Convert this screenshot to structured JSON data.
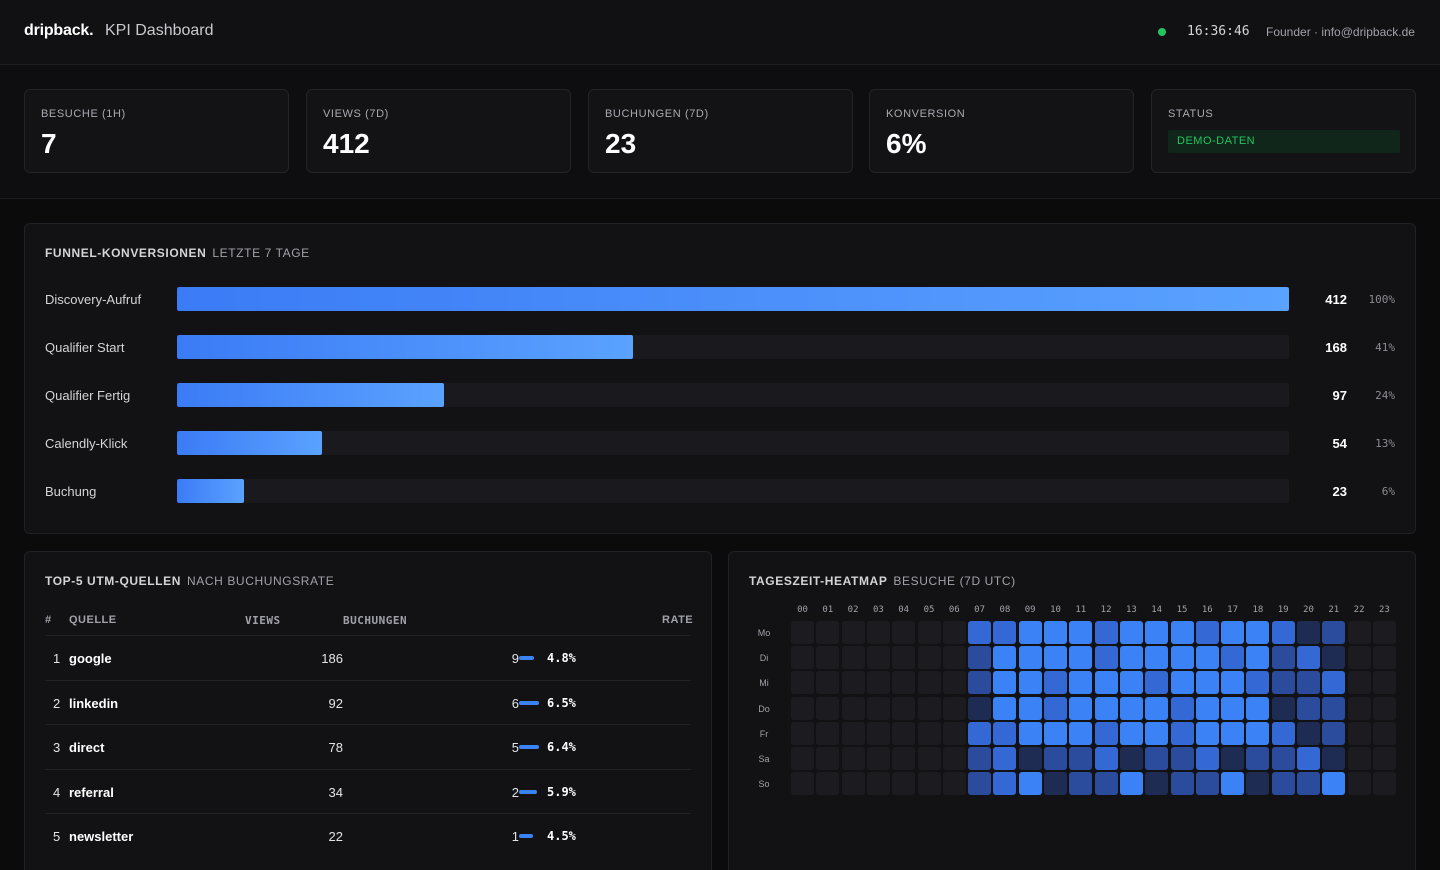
{
  "header": {
    "brand": "dripback.",
    "title": "KPI Dashboard",
    "clock": "16:36:46",
    "user": "Founder · info@dripback.de"
  },
  "kpis": [
    {
      "label": "BESUCHE (1H)",
      "value": "7"
    },
    {
      "label": "VIEWS (7D)",
      "value": "412"
    },
    {
      "label": "BUCHUNGEN (7D)",
      "value": "23"
    },
    {
      "label": "KONVERSION",
      "value": "6%"
    }
  ],
  "status": {
    "label": "STATUS",
    "badge": "DEMO-DATEN"
  },
  "funnel": {
    "title": "FUNNEL-KONVERSIONEN",
    "subtitle": "LETZTE 7 TAGE",
    "steps": [
      {
        "label": "Discovery-Aufruf",
        "count": "412",
        "pct": "100%",
        "fraction": 1.0
      },
      {
        "label": "Qualifier Start",
        "count": "168",
        "pct": "41%",
        "fraction": 0.41
      },
      {
        "label": "Qualifier Fertig",
        "count": "97",
        "pct": "24%",
        "fraction": 0.24
      },
      {
        "label": "Calendly-Klick",
        "count": "54",
        "pct": "13%",
        "fraction": 0.13
      },
      {
        "label": "Buchung",
        "count": "23",
        "pct": "6%",
        "fraction": 0.06
      }
    ]
  },
  "utm": {
    "title": "TOP-5 UTM-QUELLEN",
    "subtitle": "NACH BUCHUNGSRATE",
    "columns": {
      "num": "#",
      "source": "QUELLE",
      "views": "VIEWS",
      "bookings": "BUCHUNGEN",
      "rate": "RATE"
    },
    "rows": [
      {
        "num": "1",
        "source": "google",
        "views": "186",
        "bookings": "9",
        "rate": "4.8%",
        "rate_value": 4.8
      },
      {
        "num": "2",
        "source": "linkedin",
        "views": "92",
        "bookings": "6",
        "rate": "6.5%",
        "rate_value": 6.5
      },
      {
        "num": "3",
        "source": "direct",
        "views": "78",
        "bookings": "5",
        "rate": "6.4%",
        "rate_value": 6.4
      },
      {
        "num": "4",
        "source": "referral",
        "views": "34",
        "bookings": "2",
        "rate": "5.9%",
        "rate_value": 5.9
      },
      {
        "num": "5",
        "source": "newsletter",
        "views": "22",
        "bookings": "1",
        "rate": "4.5%",
        "rate_value": 4.5
      }
    ]
  },
  "heatmap": {
    "title": "TAGESZEIT-HEATMAP",
    "subtitle": "BESUCHE (7D UTC)",
    "hours": [
      "00",
      "01",
      "02",
      "03",
      "04",
      "05",
      "06",
      "07",
      "08",
      "09",
      "10",
      "11",
      "12",
      "13",
      "14",
      "15",
      "16",
      "17",
      "18",
      "19",
      "20",
      "21",
      "22",
      "23"
    ],
    "days": [
      "Mo",
      "Di",
      "Mi",
      "Do",
      "Fr",
      "Sa",
      "So"
    ],
    "levels": [
      [
        0,
        0,
        0,
        0,
        0,
        0,
        0,
        3,
        3,
        4,
        4,
        4,
        3,
        4,
        4,
        4,
        3,
        4,
        4,
        3,
        1,
        2,
        0,
        0
      ],
      [
        0,
        0,
        0,
        0,
        0,
        0,
        0,
        2,
        4,
        4,
        4,
        4,
        3,
        4,
        4,
        4,
        4,
        3,
        4,
        2,
        3,
        1,
        0,
        0
      ],
      [
        0,
        0,
        0,
        0,
        0,
        0,
        0,
        2,
        4,
        4,
        3,
        4,
        4,
        4,
        3,
        4,
        4,
        4,
        3,
        2,
        2,
        3,
        0,
        0
      ],
      [
        0,
        0,
        0,
        0,
        0,
        0,
        0,
        1,
        4,
        4,
        3,
        4,
        4,
        4,
        4,
        3,
        4,
        4,
        4,
        1,
        2,
        2,
        0,
        0
      ],
      [
        0,
        0,
        0,
        0,
        0,
        0,
        0,
        3,
        3,
        4,
        4,
        4,
        3,
        4,
        4,
        3,
        4,
        4,
        4,
        3,
        1,
        2,
        0,
        0
      ],
      [
        0,
        0,
        0,
        0,
        0,
        0,
        0,
        2,
        3,
        1,
        2,
        2,
        3,
        1,
        2,
        2,
        3,
        1,
        2,
        2,
        3,
        1,
        0,
        0
      ],
      [
        0,
        0,
        0,
        0,
        0,
        0,
        0,
        2,
        3,
        4,
        1,
        2,
        2,
        4,
        1,
        2,
        2,
        4,
        1,
        2,
        2,
        4,
        0,
        0
      ]
    ],
    "colors": [
      "#1c1c20",
      "#1e2b52",
      "#2b4c9c",
      "#3468d4",
      "#3b82f6"
    ]
  },
  "colors": {
    "accent": "#3b82f6",
    "live": "#22c55e",
    "status_badge_bg": "#10261a",
    "status_badge_text": "#22c55e"
  }
}
